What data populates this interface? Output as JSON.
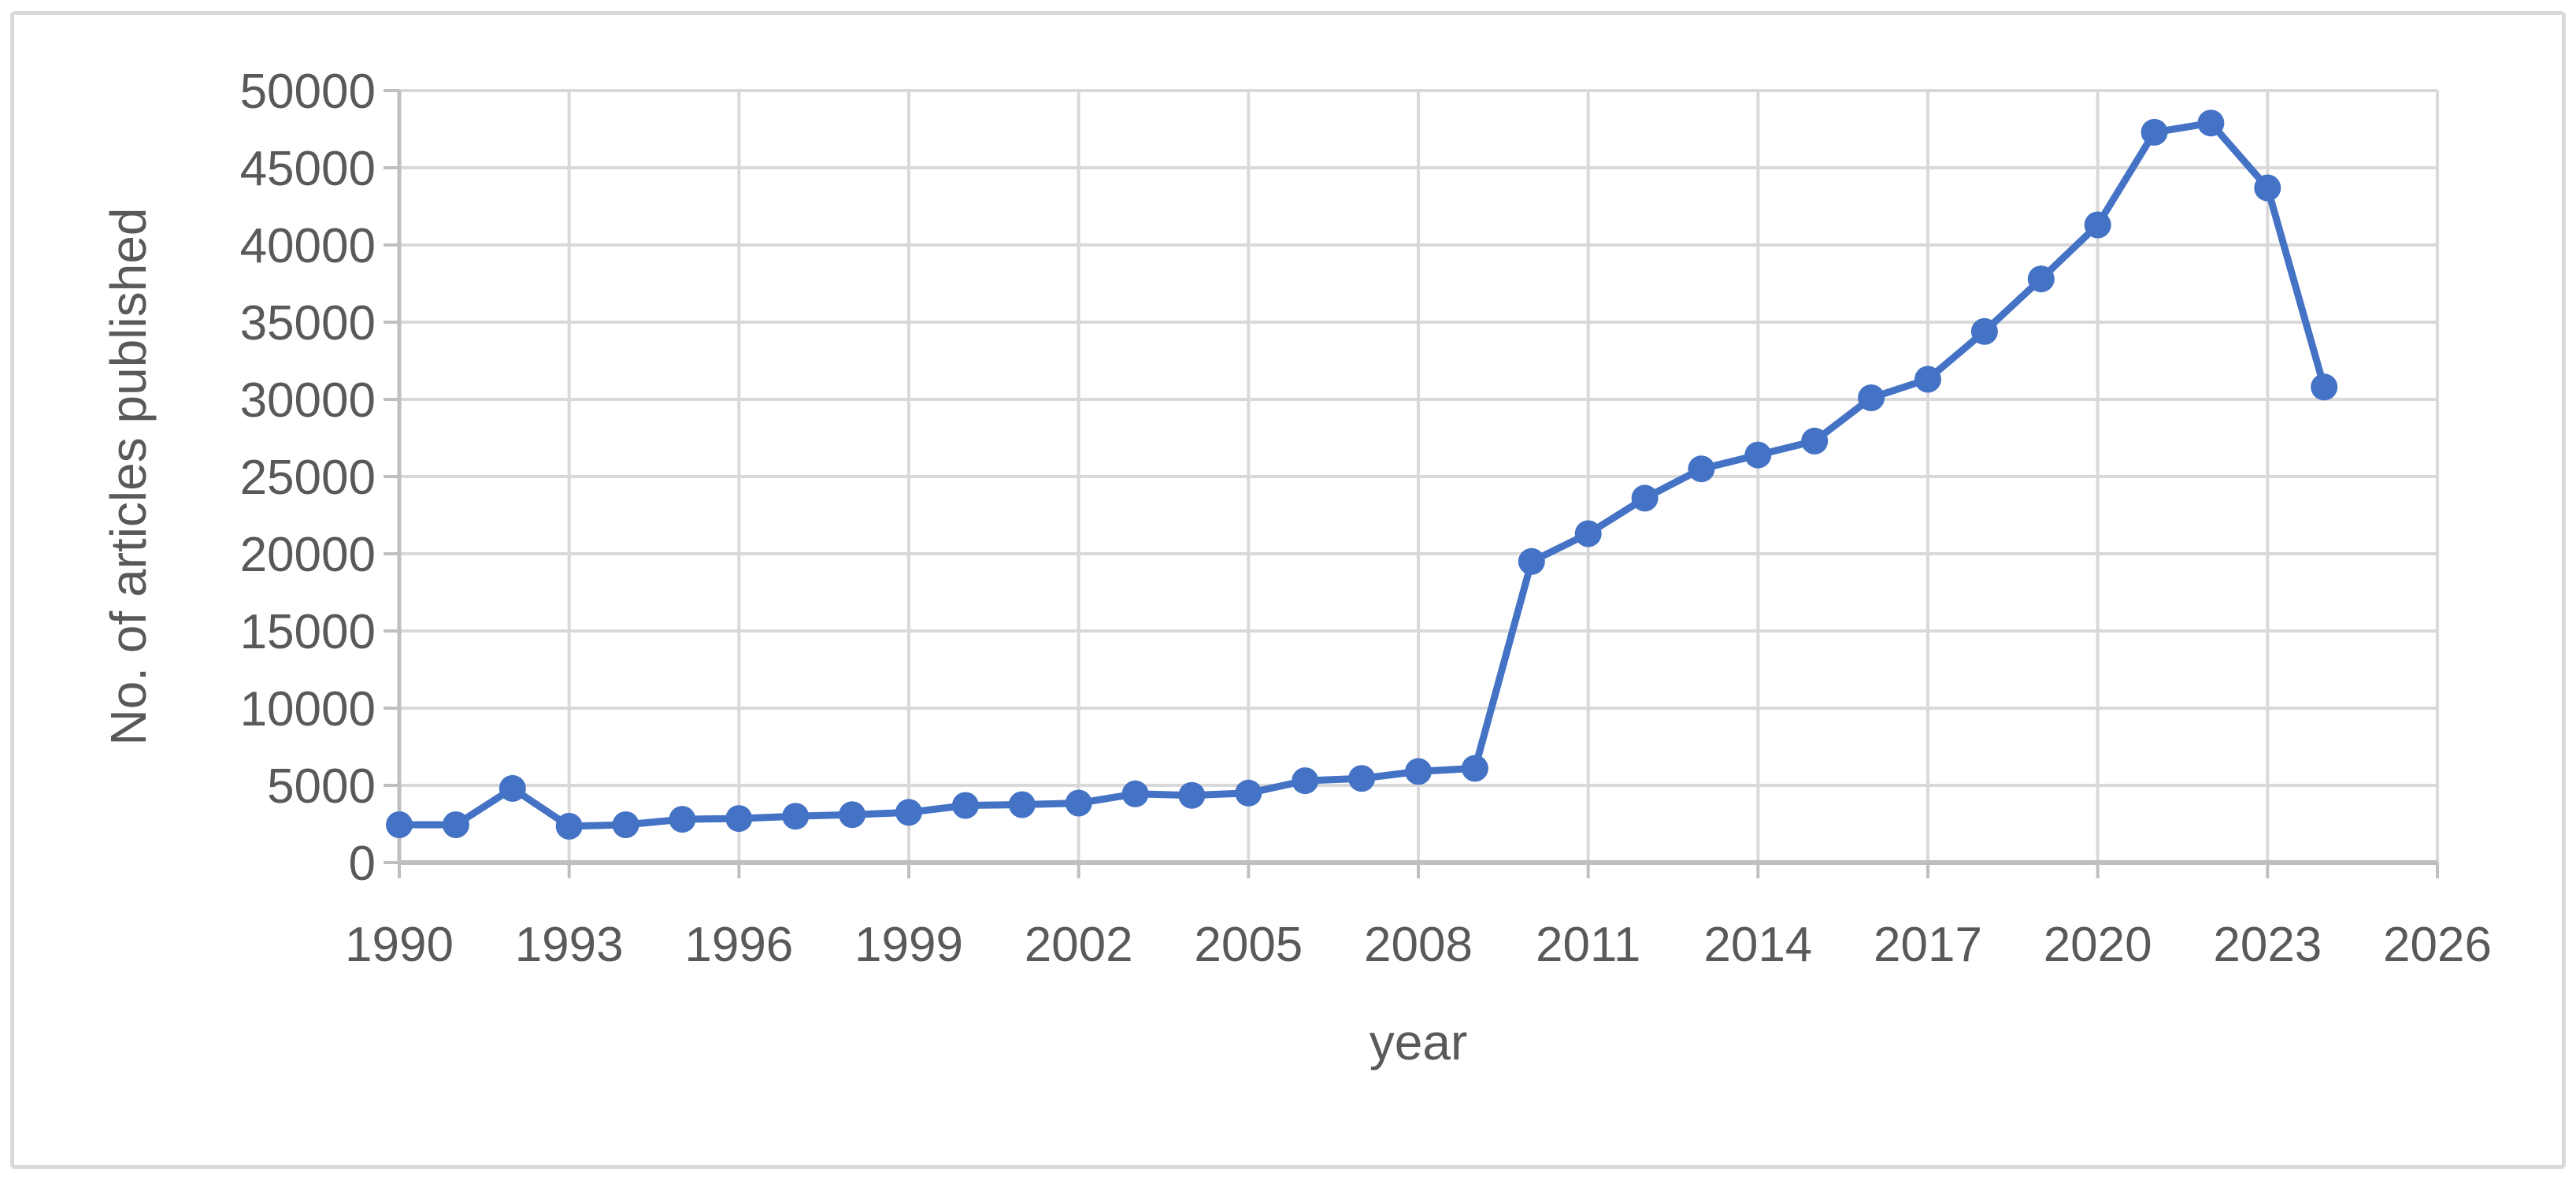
{
  "figure": {
    "background_color": "#ffffff",
    "border_color": "#d9d9d9"
  },
  "chart_data": {
    "type": "line",
    "title": "",
    "xlabel": "year",
    "ylabel": "No. of articles published",
    "x": [
      1990,
      1991,
      1992,
      1993,
      1994,
      1995,
      1996,
      1997,
      1998,
      1999,
      2000,
      2001,
      2002,
      2003,
      2004,
      2005,
      2006,
      2007,
      2008,
      2009,
      2010,
      2011,
      2012,
      2013,
      2014,
      2015,
      2016,
      2017,
      2018,
      2019,
      2020,
      2021,
      2022,
      2023,
      2024
    ],
    "series": [
      {
        "name": "No. of articles published",
        "values": [
          2450,
          2450,
          4800,
          2350,
          2450,
          2800,
          2850,
          3000,
          3100,
          3250,
          3700,
          3750,
          3850,
          4450,
          4350,
          4500,
          5300,
          5450,
          5900,
          6100,
          19500,
          21300,
          23600,
          25500,
          26400,
          27300,
          30100,
          31300,
          34400,
          37800,
          41300,
          47300,
          47900,
          43700,
          30800
        ]
      }
    ],
    "xlim": [
      1990,
      2026
    ],
    "ylim": [
      0,
      50000
    ],
    "x_ticks": [
      1990,
      1993,
      1996,
      1999,
      2002,
      2005,
      2008,
      2011,
      2014,
      2017,
      2020,
      2023,
      2026
    ],
    "y_ticks": [
      0,
      5000,
      10000,
      15000,
      20000,
      25000,
      30000,
      35000,
      40000,
      45000,
      50000
    ],
    "grid": true,
    "legend": "none",
    "line_color": "#4472C4",
    "marker": "circle",
    "marker_color": "#4472C4",
    "gridline_color": "#d9d9d9",
    "axis_color": "#bfbfbf",
    "text_color": "#595959"
  }
}
